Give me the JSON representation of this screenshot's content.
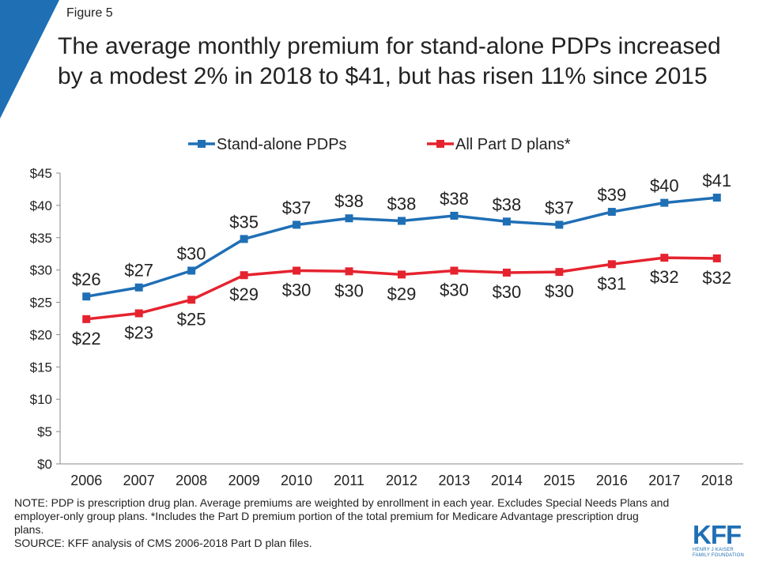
{
  "figure_label": "Figure 5",
  "title": "The average monthly premium for stand-alone PDPs increased by a modest 2% in 2018 to $41, but has risen 11% since 2015",
  "notes": {
    "note": "NOTE: PDP is prescription drug plan. Average premiums are weighted by enrollment in each year. Excludes Special Needs Plans and employer-only group plans. *Includes the Part D premium portion of the total premium for Medicare Advantage prescription drug plans.",
    "source": "SOURCE: KFF analysis of CMS 2006-2018 Part D plan files."
  },
  "logo": {
    "text": "KFF",
    "subtext_line1": "HENRY J KAISER",
    "subtext_line2": "FAMILY FOUNDATION"
  },
  "colors": {
    "accent": "#1f6fb5",
    "series_pdp": "#1f6fb5",
    "series_all": "#e5232f"
  },
  "chart_data": {
    "type": "line",
    "title": "",
    "xlabel": "",
    "ylabel": "",
    "x": [
      "2006",
      "2007",
      "2008",
      "2009",
      "2010",
      "2011",
      "2012",
      "2013",
      "2014",
      "2015",
      "2016",
      "2017",
      "2018"
    ],
    "ylim": [
      0,
      45
    ],
    "yticks": [
      "$0",
      "$5",
      "$10",
      "$15",
      "$20",
      "$25",
      "$30",
      "$35",
      "$40",
      "$45"
    ],
    "ytick_values": [
      0,
      5,
      10,
      15,
      20,
      25,
      30,
      35,
      40,
      45
    ],
    "grid": false,
    "legend_position": "top",
    "series": [
      {
        "name": "Stand-alone PDPs",
        "color": "#1f6fb5",
        "values": [
          25.9,
          27.3,
          29.9,
          34.8,
          37.0,
          38.0,
          37.6,
          38.4,
          37.5,
          37.0,
          39.0,
          40.4,
          41.2
        ],
        "labels": [
          "$26",
          "$27",
          "$30",
          "$35",
          "$37",
          "$38",
          "$38",
          "$38",
          "$38",
          "$37",
          "$39",
          "$40",
          "$41"
        ],
        "label_position": "above"
      },
      {
        "name": "All Part D plans*",
        "color": "#e5232f",
        "values": [
          22.4,
          23.3,
          25.4,
          29.2,
          29.9,
          29.8,
          29.3,
          29.9,
          29.6,
          29.7,
          30.9,
          31.9,
          31.8
        ],
        "labels": [
          "$22",
          "$23",
          "$25",
          "$29",
          "$30",
          "$30",
          "$29",
          "$30",
          "$30",
          "$30",
          "$31",
          "$32",
          "$32"
        ],
        "label_position": "below"
      }
    ]
  }
}
